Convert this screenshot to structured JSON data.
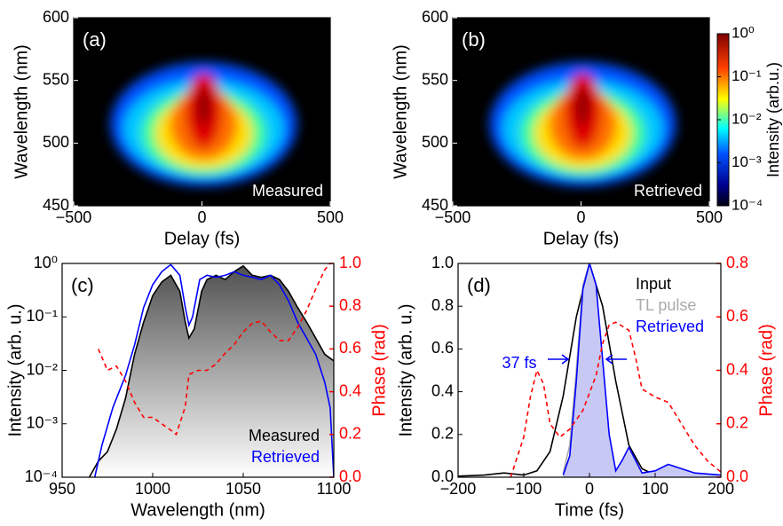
{
  "chart_data": [
    {
      "type": "heatmap",
      "panel_label": "(a)",
      "annotation": "Measured",
      "xlabel": "Delay (fs)",
      "ylabel": "Wavelength (nm)",
      "xlim": [
        -500,
        500
      ],
      "xticks": [
        {
          "value": -500,
          "label": "−500"
        },
        0,
        500
      ],
      "ylim": [
        450,
        600
      ],
      "yticks": [
        450,
        500,
        550,
        600
      ]
    },
    {
      "type": "heatmap",
      "panel_label": "(b)",
      "annotation": "Retrieved",
      "xlabel": "Delay (fs)",
      "ylabel": "Wavelength (nm)",
      "xlim": [
        -500,
        500
      ],
      "xticks": [
        {
          "value": -500,
          "label": "−500"
        },
        0,
        500
      ],
      "ylim": [
        450,
        600
      ],
      "yticks": [
        450,
        500,
        550,
        600
      ],
      "colorbar": {
        "label": "Intensity (arb.u.)",
        "log": true,
        "lim": [
          0.0001,
          1
        ],
        "ticks": [
          {
            "value": 0.0001,
            "label": "10⁻⁴"
          },
          {
            "value": 0.001,
            "label": "10⁻³"
          },
          {
            "value": 0.01,
            "label": "10⁻²"
          },
          {
            "value": 0.1,
            "label": "10⁻¹"
          },
          {
            "value": 1,
            "label": "10⁰"
          }
        ]
      }
    },
    {
      "type": "line",
      "panel_label": "(c)",
      "xlabel": "Wavelength (nm)",
      "ylabel": "Intensity (arb. u.)",
      "y2label": "Phase (rad)",
      "xlim": [
        950,
        1100
      ],
      "xticks": [
        950,
        1000,
        1050,
        1100
      ],
      "ylog": true,
      "ylim": [
        0.0001,
        1
      ],
      "yticks": [
        {
          "value": 0.0001,
          "label": "10⁻⁴"
        },
        {
          "value": 0.001,
          "label": "10⁻³"
        },
        {
          "value": 0.01,
          "label": "10⁻²"
        },
        {
          "value": 0.1,
          "label": "10⁻¹"
        },
        {
          "value": 1,
          "label": "10⁰"
        }
      ],
      "y2lim": [
        0,
        1
      ],
      "y2ticks": [
        {
          "value": 0,
          "label": "0.0"
        },
        0.2,
        0.4,
        0.6,
        0.8,
        {
          "value": 1,
          "label": "1.0"
        }
      ],
      "legend": "lower right",
      "series": [
        {
          "name": "Measured",
          "color": "#000000",
          "fill": "gray-gradient",
          "x": [
            965,
            970,
            975,
            980,
            985,
            990,
            995,
            1000,
            1005,
            1010,
            1015,
            1018,
            1020,
            1023,
            1027,
            1030,
            1035,
            1040,
            1045,
            1050,
            1055,
            1060,
            1065,
            1070,
            1075,
            1080,
            1085,
            1090,
            1095,
            1100
          ],
          "values": [
            0.0001,
            0.0002,
            0.0003,
            0.0008,
            0.003,
            0.02,
            0.08,
            0.25,
            0.45,
            0.6,
            0.3,
            0.08,
            0.04,
            0.06,
            0.3,
            0.5,
            0.6,
            0.5,
            0.7,
            0.9,
            0.6,
            0.55,
            0.6,
            0.5,
            0.3,
            0.15,
            0.08,
            0.04,
            0.02,
            0.015
          ]
        },
        {
          "name": "Retrieved",
          "color": "#0000ff",
          "x": [
            968,
            972,
            978,
            985,
            990,
            995,
            1000,
            1005,
            1010,
            1015,
            1018,
            1020,
            1022,
            1026,
            1030,
            1035,
            1040,
            1045,
            1050,
            1055,
            1060,
            1065,
            1070,
            1075,
            1080,
            1085,
            1090,
            1095,
            1098,
            1100
          ],
          "values": [
            0.0001,
            0.0004,
            0.002,
            0.008,
            0.03,
            0.15,
            0.4,
            0.7,
            0.95,
            0.6,
            0.15,
            0.07,
            0.1,
            0.5,
            0.6,
            0.55,
            0.6,
            0.7,
            0.6,
            0.55,
            0.5,
            0.6,
            0.4,
            0.2,
            0.08,
            0.04,
            0.02,
            0.006,
            0.002,
            0.0001
          ]
        },
        {
          "color": "#ff0000",
          "dash": true,
          "axis": "y2",
          "x": [
            970,
            975,
            980,
            985,
            990,
            995,
            1000,
            1005,
            1010,
            1013,
            1018,
            1020,
            1025,
            1030,
            1035,
            1040,
            1045,
            1050,
            1055,
            1060,
            1065,
            1070,
            1075,
            1080,
            1085,
            1090,
            1095,
            1098
          ],
          "values": [
            0.6,
            0.5,
            0.52,
            0.45,
            0.35,
            0.28,
            0.28,
            0.25,
            0.22,
            0.2,
            0.33,
            0.48,
            0.5,
            0.5,
            0.53,
            0.58,
            0.62,
            0.68,
            0.72,
            0.73,
            0.68,
            0.64,
            0.64,
            0.7,
            0.78,
            0.88,
            0.97,
            1.0
          ]
        }
      ]
    },
    {
      "type": "line",
      "panel_label": "(d)",
      "xlabel": "Time (fs)",
      "ylabel": "Intensity (arb. u.)",
      "y2label": "Phase (rad)",
      "xlim": [
        -200,
        200
      ],
      "xticks": [
        {
          "value": -200,
          "label": "−200"
        },
        {
          "value": -100,
          "label": "−100"
        },
        0,
        100,
        200
      ],
      "ylim": [
        0,
        1
      ],
      "yticks": [
        {
          "value": 0,
          "label": "0.0"
        },
        0.2,
        0.4,
        0.6,
        0.8,
        {
          "value": 1,
          "label": "1.0"
        }
      ],
      "y2lim": [
        0,
        0.8
      ],
      "y2ticks": [
        {
          "value": 0,
          "label": "0.0"
        },
        0.2,
        0.4,
        0.6,
        0.8
      ],
      "legend": "upper right",
      "annotation": "37 fs",
      "series": [
        {
          "name": "Input",
          "color": "#000000",
          "x": [
            -200,
            -160,
            -130,
            -100,
            -80,
            -60,
            -40,
            -20,
            0,
            20,
            40,
            60,
            80,
            100,
            140,
            200
          ],
          "values": [
            0.005,
            0.01,
            0.02,
            0.01,
            0.03,
            0.12,
            0.38,
            0.75,
            1.0,
            0.8,
            0.45,
            0.15,
            0.04,
            0.01,
            0.005,
            0.005
          ]
        },
        {
          "name": "TL pulse",
          "color": "#aaaaaa",
          "x": [
            -40,
            -30,
            -20,
            -10,
            0,
            10,
            20,
            30,
            40,
            60,
            80
          ],
          "values": [
            0.02,
            0.15,
            0.5,
            0.9,
            1.0,
            0.88,
            0.5,
            0.15,
            0.03,
            0.02,
            0.0
          ]
        },
        {
          "name": "Retrieved",
          "color": "#0000ff",
          "fill": "#c8c8f4",
          "x": [
            -40,
            -30,
            -20,
            -10,
            0,
            10,
            20,
            30,
            40,
            50,
            60,
            70,
            80,
            100,
            120,
            140,
            160,
            200
          ],
          "values": [
            0.01,
            0.1,
            0.45,
            0.88,
            1.0,
            0.9,
            0.55,
            0.2,
            0.03,
            0.08,
            0.14,
            0.08,
            0.02,
            0.03,
            0.06,
            0.04,
            0.02,
            0.01
          ]
        },
        {
          "color": "#ff0000",
          "dash": true,
          "axis": "y2",
          "x": [
            -120,
            -100,
            -90,
            -80,
            -70,
            -60,
            -45,
            -30,
            -10,
            10,
            20,
            30,
            40,
            60,
            70,
            80,
            100,
            120,
            140,
            160,
            180,
            200
          ],
          "values": [
            0,
            0.15,
            0.3,
            0.4,
            0.35,
            0.2,
            0.15,
            0.18,
            0.25,
            0.38,
            0.5,
            0.57,
            0.58,
            0.55,
            0.45,
            0.33,
            0.3,
            0.28,
            0.2,
            0.12,
            0.06,
            0.02
          ]
        }
      ]
    }
  ]
}
